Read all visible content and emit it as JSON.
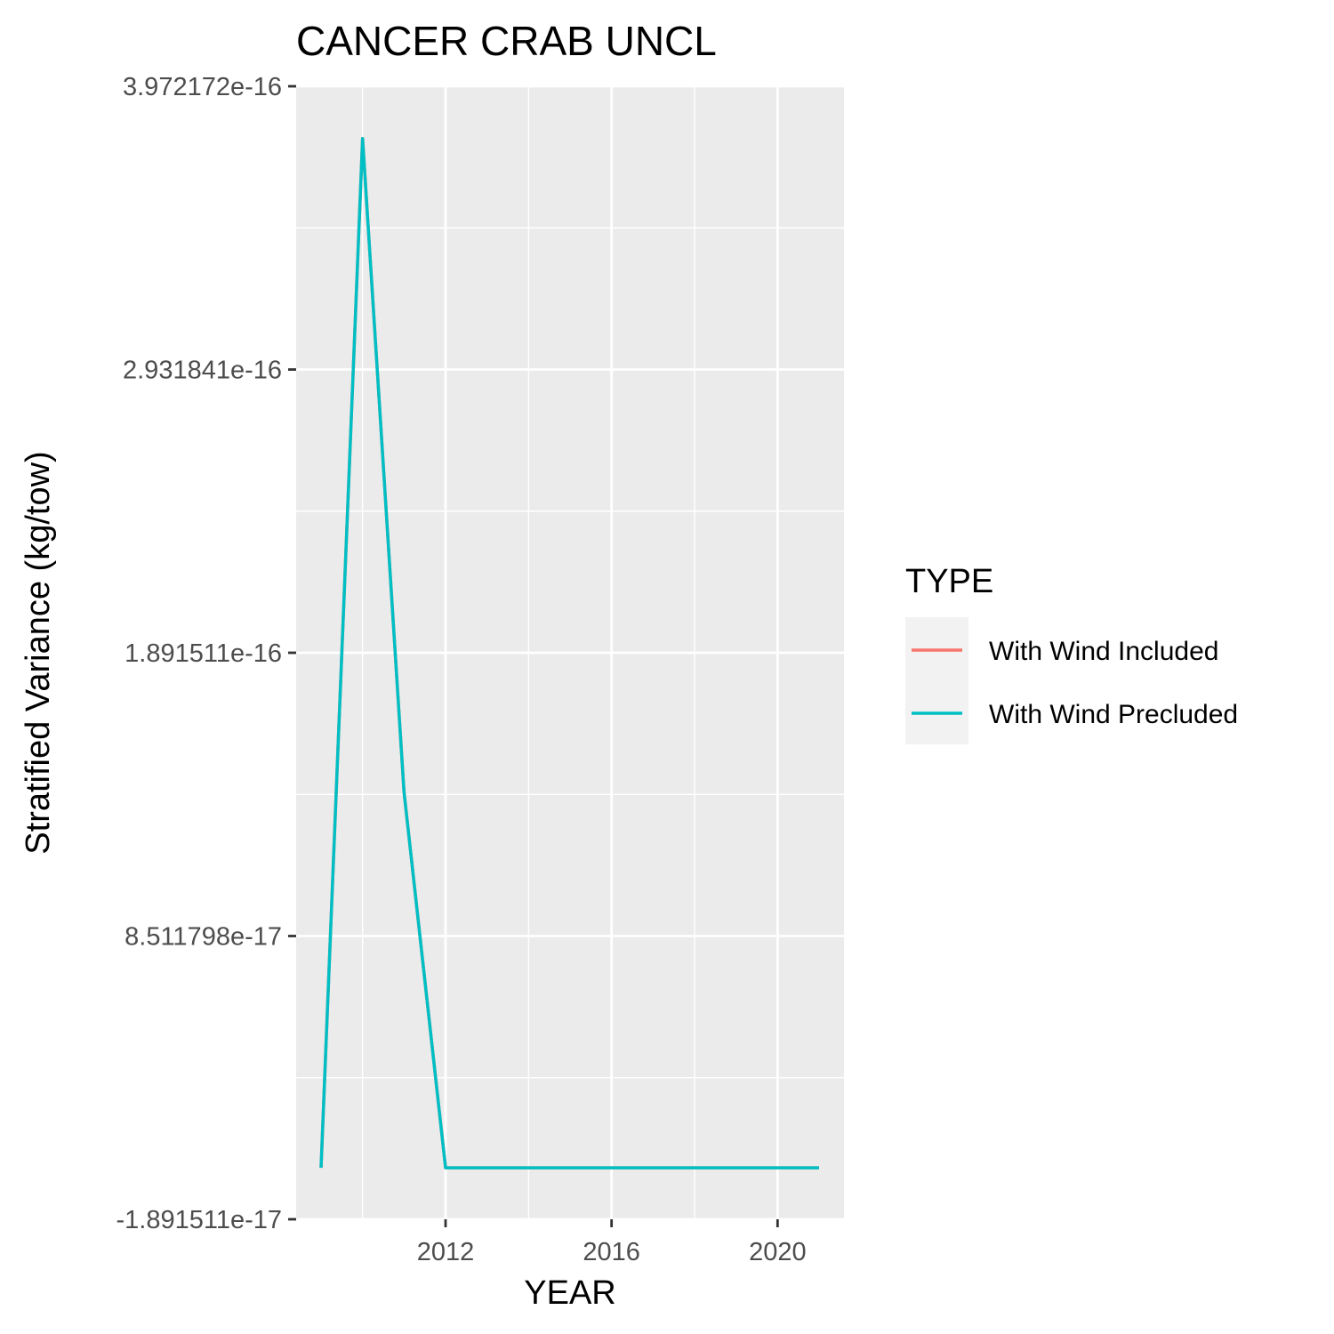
{
  "chart_data": {
    "type": "line",
    "title": "CANCER CRAB UNCL",
    "xlabel": "YEAR",
    "ylabel": "Stratified Variance (kg/tow)",
    "xlim": [
      2008.4,
      2021.6
    ],
    "ylim": [
      -1.891511e-17,
      3.972172e-16
    ],
    "x_ticks": [
      2012,
      2016,
      2020
    ],
    "x_tick_labels": [
      "2012",
      "2016",
      "2020"
    ],
    "y_ticks": [
      -1.891511e-17,
      8.511798e-17,
      1.891511e-16,
      2.931841e-16,
      3.972172e-16
    ],
    "y_tick_labels": [
      "-1.891511e-17",
      "8.511798e-17",
      "1.891511e-16",
      "2.931841e-16",
      "3.972172e-16"
    ],
    "grid": true,
    "legend": {
      "title": "TYPE",
      "placement": "right"
    },
    "series": [
      {
        "name": "With Wind Included",
        "color": "#F8766D",
        "x": [
          2009,
          2010,
          2011,
          2012,
          2013,
          2014,
          2015,
          2016,
          2017,
          2018,
          2019,
          2020,
          2021
        ],
        "values": [
          0,
          3.78e-16,
          1.38e-16,
          0,
          0,
          0,
          0,
          0,
          0,
          0,
          0,
          0,
          0
        ]
      },
      {
        "name": "With Wind Precluded",
        "color": "#00BFC4",
        "x": [
          2009,
          2010,
          2011,
          2012,
          2013,
          2014,
          2015,
          2016,
          2017,
          2018,
          2019,
          2020,
          2021
        ],
        "values": [
          0,
          3.78e-16,
          1.38e-16,
          0,
          0,
          0,
          0,
          0,
          0,
          0,
          0,
          0,
          0
        ]
      }
    ]
  }
}
